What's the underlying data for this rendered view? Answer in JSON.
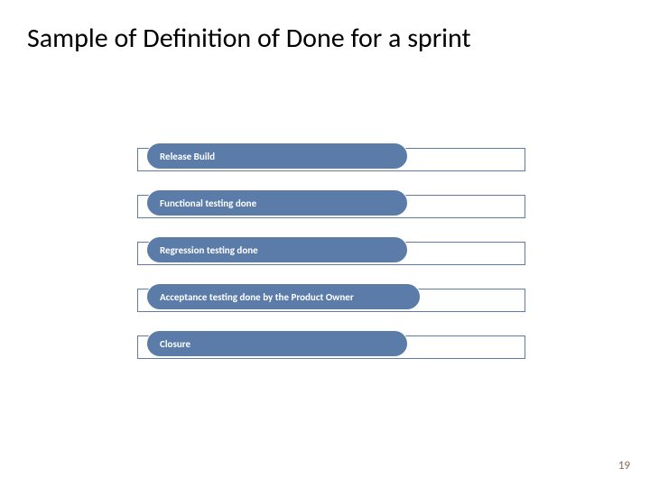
{
  "title": "Sample of Definition of Done for a sprint",
  "title_fontsize": 30,
  "title_color": "#000000",
  "page_number": "19",
  "page_number_color": "#8a6a5a",
  "page_number_fontsize": 13,
  "background_color": "#ffffff",
  "diagram": {
    "type": "infographic",
    "container_border_color": "#5b7ba8",
    "pill_fill_color": "#5b7ba8",
    "pill_text_color": "#ffffff",
    "pill_border_color": "#ffffff",
    "pill_fontsize": 11,
    "pill_fontweight": 700,
    "pill_radius": 15,
    "step_height": 36,
    "step_gap": 16,
    "steps": [
      {
        "label": "Release Build",
        "pill_width": 290
      },
      {
        "label": "Functional testing done",
        "pill_width": 290
      },
      {
        "label": "Regression testing done",
        "pill_width": 290
      },
      {
        "label": "Acceptance testing done by the Product Owner",
        "pill_width": 304
      },
      {
        "label": "Closure",
        "pill_width": 290
      }
    ]
  }
}
